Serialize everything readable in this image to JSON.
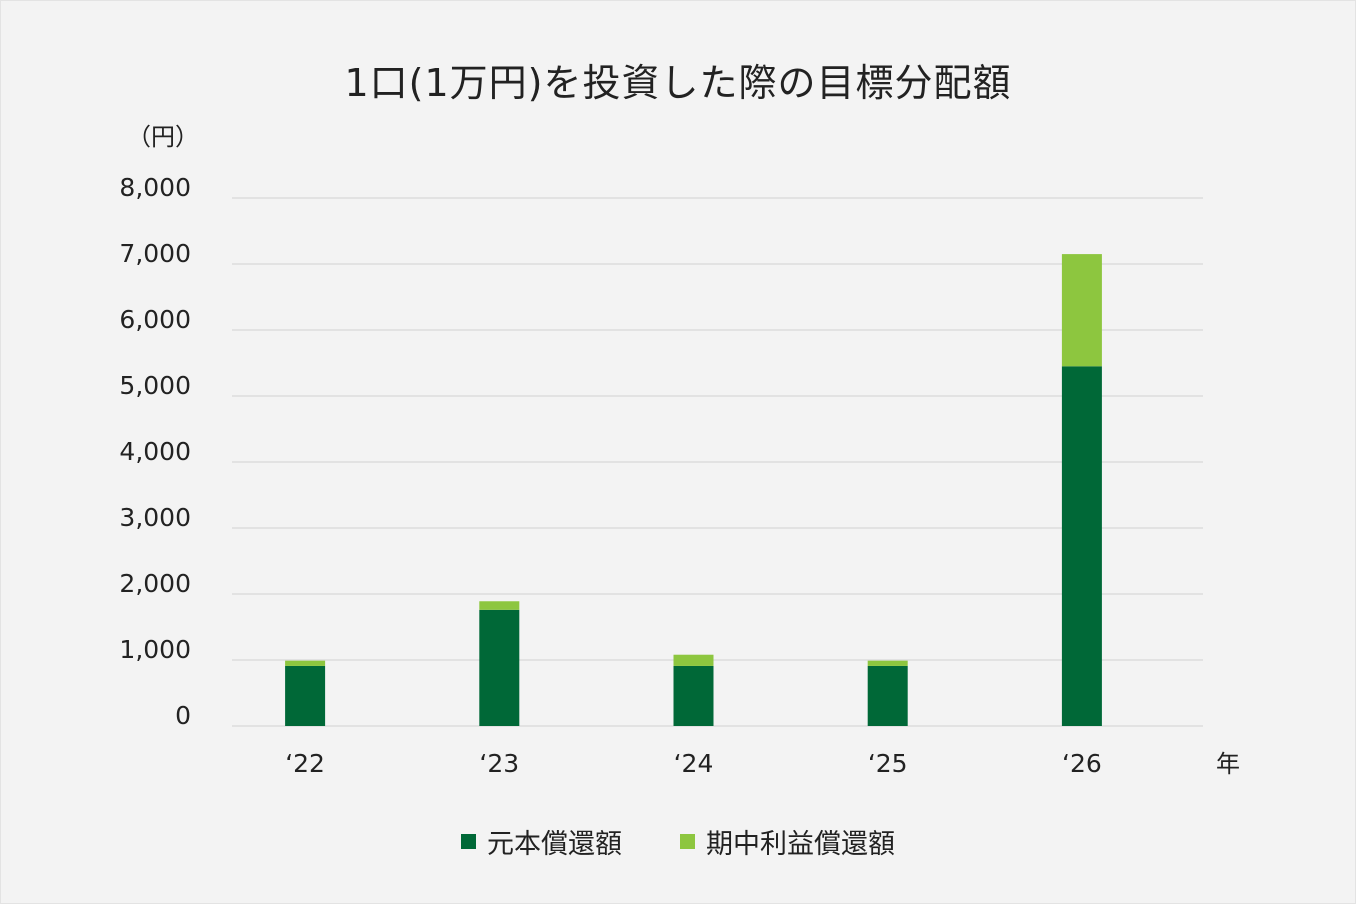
{
  "chart_data": {
    "type": "bar",
    "stacked": true,
    "title": "1口(1万円)を投資した際の目標分配額",
    "ylabel": "（円）",
    "xlabel": "年",
    "ylim": [
      0,
      8000
    ],
    "yticks": [
      "8,000",
      "7,000",
      "6,000",
      "5,000",
      "4,000",
      "3,000",
      "2,000",
      "1,000",
      "0"
    ],
    "ytick_values": [
      8000,
      7000,
      6000,
      5000,
      4000,
      3000,
      2000,
      1000,
      0
    ],
    "categories": [
      "‘22",
      "‘23",
      "‘24",
      "‘25",
      "‘26"
    ],
    "series": [
      {
        "name": "元本償還額",
        "color": "#006837",
        "values": [
          910,
          1760,
          910,
          910,
          5450
        ]
      },
      {
        "name": "期中利益償還額",
        "color": "#8dc63f",
        "values": [
          80,
          130,
          170,
          80,
          1700
        ]
      }
    ],
    "grid": true,
    "legend_position": "bottom"
  }
}
